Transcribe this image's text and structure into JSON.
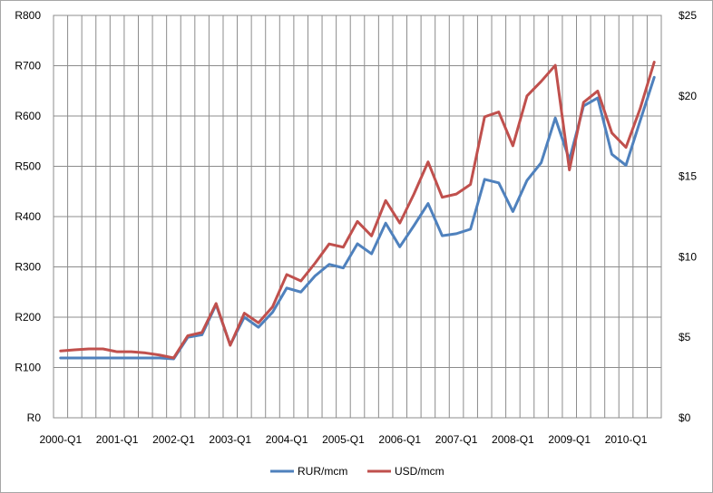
{
  "chart_data": {
    "type": "line",
    "title": "",
    "xlabel": "",
    "ylabel_left": "",
    "ylabel_right": "",
    "grid": true,
    "legend_position": "bottom",
    "x_tick_labels": [
      "2000-Q1",
      "2001-Q1",
      "2002-Q1",
      "2003-Q1",
      "2004-Q1",
      "2005-Q1",
      "2006-Q1",
      "2007-Q1",
      "2008-Q1",
      "2009-Q1",
      "2010-Q1"
    ],
    "y_left_ticks": [
      "R0",
      "R100",
      "R200",
      "R300",
      "R400",
      "R500",
      "R600",
      "R700",
      "R800"
    ],
    "y_right_ticks": [
      "$0",
      "$5",
      "$10",
      "$15",
      "$20",
      "$25"
    ],
    "ylim_left": [
      0,
      800
    ],
    "ylim_right": [
      0,
      25
    ],
    "x": [
      "2000-Q1",
      "2000-Q2",
      "2000-Q3",
      "2000-Q4",
      "2001-Q1",
      "2001-Q2",
      "2001-Q3",
      "2001-Q4",
      "2002-Q1",
      "2002-Q2",
      "2002-Q3",
      "2002-Q4",
      "2003-Q1",
      "2003-Q2",
      "2003-Q3",
      "2003-Q4",
      "2004-Q1",
      "2004-Q2",
      "2004-Q3",
      "2004-Q4",
      "2005-Q1",
      "2005-Q2",
      "2005-Q3",
      "2005-Q4",
      "2006-Q1",
      "2006-Q2",
      "2006-Q3",
      "2006-Q4",
      "2007-Q1",
      "2007-Q2",
      "2007-Q3",
      "2007-Q4",
      "2008-Q1",
      "2008-Q2",
      "2008-Q3",
      "2008-Q4",
      "2009-Q1",
      "2009-Q2",
      "2009-Q3",
      "2009-Q4",
      "2010-Q1",
      "2010-Q2",
      "2010-Q3"
    ],
    "series": [
      {
        "name": "RUR/mcm",
        "axis": "left",
        "color": "#4f81bd",
        "values": [
          119,
          119,
          119,
          119,
          119,
          119,
          119,
          119,
          117,
          160,
          165,
          225,
          145,
          200,
          180,
          210,
          258,
          250,
          282,
          305,
          298,
          346,
          326,
          387,
          340,
          382,
          426,
          362,
          366,
          375,
          474,
          467,
          410,
          472,
          507,
          596,
          513,
          620,
          636,
          524,
          502,
          590,
          677
        ]
      },
      {
        "name": "USD/mcm",
        "axis": "right",
        "color": "#c0504d",
        "values": [
          4.15,
          4.22,
          4.28,
          4.28,
          4.1,
          4.1,
          4.03,
          3.9,
          3.72,
          5.1,
          5.3,
          7.1,
          4.5,
          6.5,
          5.9,
          6.9,
          8.9,
          8.5,
          9.6,
          10.8,
          10.6,
          12.2,
          11.3,
          13.5,
          12.1,
          13.9,
          15.9,
          13.7,
          13.9,
          14.5,
          18.7,
          19,
          16.9,
          20,
          20.9,
          21.9,
          15.4,
          19.6,
          20.3,
          17.7,
          16.8,
          19.2,
          22.1
        ]
      }
    ]
  }
}
